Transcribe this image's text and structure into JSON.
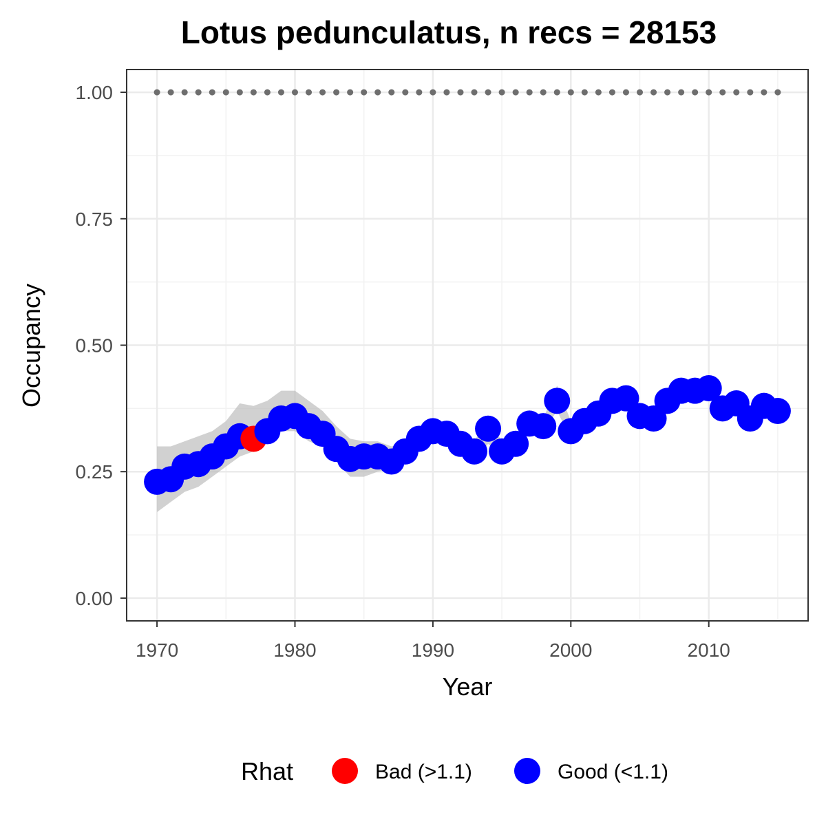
{
  "chart_data": {
    "type": "scatter",
    "title": "Lotus pedunculatus, n recs = 28153",
    "xlabel": "Year",
    "ylabel": "Occupancy",
    "xlim": [
      1967.8,
      2017.2
    ],
    "ylim": [
      -0.045,
      1.045
    ],
    "x_ticks": [
      1970,
      1980,
      1990,
      2000,
      2010
    ],
    "x_tick_labels": [
      "1970",
      "1980",
      "1990",
      "2000",
      "2010"
    ],
    "y_ticks": [
      0.0,
      0.25,
      0.5,
      0.75,
      1.0
    ],
    "y_tick_labels": [
      "0.00",
      "0.25",
      "0.50",
      "0.75",
      "1.00"
    ],
    "grid": true,
    "legend_position": "bottom",
    "legend": {
      "title": "Rhat",
      "entries": [
        {
          "label": "Bad (>1.1)",
          "color": "#ff0000"
        },
        {
          "label": "Good (<1.1)",
          "color": "#0000ff"
        }
      ]
    },
    "reference_line": {
      "y": 1.0,
      "style": "dotted",
      "color": "#6e6e6e"
    },
    "band_color": "#bdbdbd",
    "series": [
      {
        "x": [
          1970,
          1971,
          1972,
          1973,
          1974,
          1975,
          1976,
          1977,
          1978,
          1979,
          1980,
          1981,
          1982,
          1983,
          1984,
          1985,
          1986,
          1987,
          1988,
          1989,
          1990,
          1991,
          1992,
          1993,
          1994,
          1995,
          1996,
          1997,
          1998,
          1999,
          2000,
          2001,
          2002,
          2003,
          2004,
          2005,
          2006,
          2007,
          2008,
          2009,
          2010,
          2011,
          2012,
          2013,
          2014,
          2015
        ],
        "y": [
          0.23,
          0.235,
          0.26,
          0.265,
          0.28,
          0.3,
          0.32,
          0.315,
          0.33,
          0.355,
          0.36,
          0.34,
          0.325,
          0.295,
          0.275,
          0.28,
          0.28,
          0.27,
          0.29,
          0.315,
          0.33,
          0.325,
          0.305,
          0.29,
          0.335,
          0.29,
          0.305,
          0.345,
          0.34,
          0.39,
          0.33,
          0.35,
          0.365,
          0.39,
          0.395,
          0.36,
          0.355,
          0.39,
          0.41,
          0.41,
          0.415,
          0.375,
          0.385,
          0.355,
          0.38,
          0.37
        ],
        "lower": [
          0.17,
          0.19,
          0.21,
          0.22,
          0.24,
          0.26,
          0.28,
          0.29,
          0.31,
          0.33,
          0.33,
          0.31,
          0.3,
          0.27,
          0.24,
          0.24,
          0.25,
          0.255,
          0.27,
          0.295,
          0.31,
          0.31,
          0.29,
          0.27,
          0.305,
          0.28,
          0.295,
          0.325,
          0.33,
          0.37,
          0.315,
          0.335,
          0.35,
          0.37,
          0.38,
          0.35,
          0.345,
          0.375,
          0.395,
          0.395,
          0.4,
          0.36,
          0.37,
          0.34,
          0.365,
          0.36
        ],
        "upper": [
          0.3,
          0.3,
          0.31,
          0.32,
          0.33,
          0.35,
          0.385,
          0.38,
          0.39,
          0.41,
          0.41,
          0.39,
          0.37,
          0.34,
          0.315,
          0.31,
          0.31,
          0.3,
          0.31,
          0.335,
          0.35,
          0.345,
          0.325,
          0.31,
          0.355,
          0.31,
          0.32,
          0.36,
          0.355,
          0.42,
          0.35,
          0.365,
          0.38,
          0.405,
          0.41,
          0.375,
          0.37,
          0.405,
          0.425,
          0.425,
          0.43,
          0.39,
          0.4,
          0.37,
          0.395,
          0.385
        ],
        "rhat": [
          "Good (<1.1)",
          "Good (<1.1)",
          "Good (<1.1)",
          "Good (<1.1)",
          "Good (<1.1)",
          "Good (<1.1)",
          "Good (<1.1)",
          "Bad (>1.1)",
          "Good (<1.1)",
          "Good (<1.1)",
          "Good (<1.1)",
          "Good (<1.1)",
          "Good (<1.1)",
          "Good (<1.1)",
          "Good (<1.1)",
          "Good (<1.1)",
          "Good (<1.1)",
          "Good (<1.1)",
          "Good (<1.1)",
          "Good (<1.1)",
          "Good (<1.1)",
          "Good (<1.1)",
          "Good (<1.1)",
          "Good (<1.1)",
          "Good (<1.1)",
          "Good (<1.1)",
          "Good (<1.1)",
          "Good (<1.1)",
          "Good (<1.1)",
          "Good (<1.1)",
          "Good (<1.1)",
          "Good (<1.1)",
          "Good (<1.1)",
          "Good (<1.1)",
          "Good (<1.1)",
          "Good (<1.1)",
          "Good (<1.1)",
          "Good (<1.1)",
          "Good (<1.1)",
          "Good (<1.1)",
          "Good (<1.1)",
          "Good (<1.1)",
          "Good (<1.1)",
          "Good (<1.1)",
          "Good (<1.1)",
          "Good (<1.1)"
        ]
      }
    ]
  }
}
